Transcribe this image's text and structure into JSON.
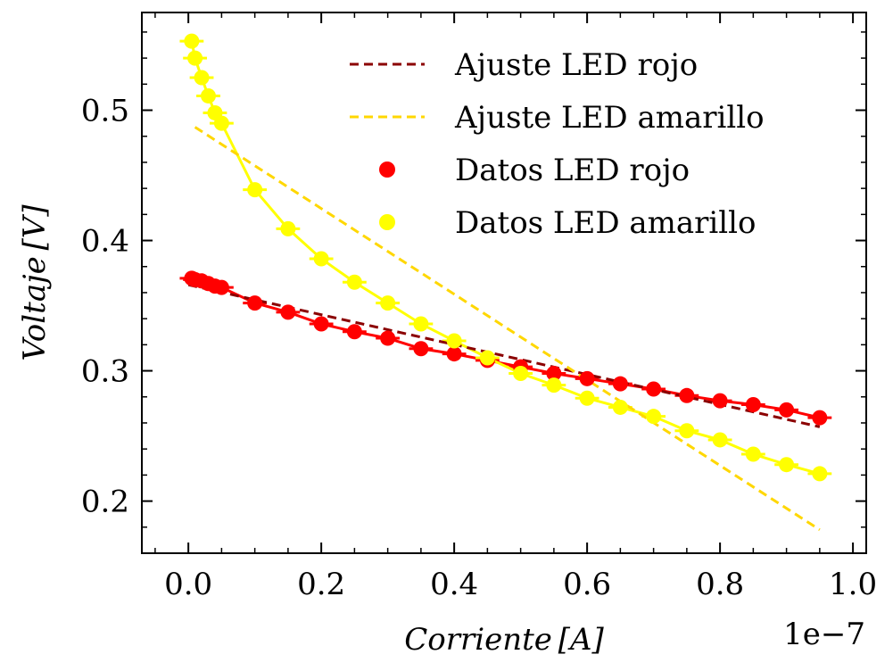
{
  "chart_data": {
    "type": "scatter",
    "xlabel": "Corriente [A]",
    "ylabel": "Voltaje [V]",
    "x_offset_label": "1e−7",
    "xlim": [
      -0.07,
      1.02
    ],
    "ylim": [
      0.16,
      0.575
    ],
    "x_ticks": [
      0.0,
      0.2,
      0.4,
      0.6,
      0.8,
      1.0
    ],
    "x_tick_labels": [
      "0.0",
      "0.2",
      "0.4",
      "0.6",
      "0.8",
      "1.0"
    ],
    "y_ticks": [
      0.2,
      0.3,
      0.4,
      0.5
    ],
    "y_tick_labels": [
      "0.2",
      "0.3",
      "0.4",
      "0.5"
    ],
    "x_scale_factor": "1e-7",
    "x_error": 0.018,
    "legend_position": "top-right",
    "legend": [
      {
        "label": "Ajuste LED rojo",
        "kind": "dashed-line",
        "color": "#8b0000"
      },
      {
        "label": "Ajuste LED amarillo",
        "kind": "dashed-line",
        "color": "#ffd700"
      },
      {
        "label": "Datos LED rojo",
        "kind": "marker",
        "color": "#ff0000"
      },
      {
        "label": "Datos LED amarillo",
        "kind": "marker",
        "color": "#ffff00"
      }
    ],
    "series": [
      {
        "name": "Datos LED rojo",
        "kind": "scatter",
        "color": "#ff0000",
        "x": [
          0.005,
          0.01,
          0.02,
          0.03,
          0.04,
          0.05,
          0.1,
          0.15,
          0.2,
          0.25,
          0.3,
          0.35,
          0.4,
          0.45,
          0.5,
          0.55,
          0.6,
          0.65,
          0.7,
          0.75,
          0.8,
          0.85,
          0.9,
          0.95
        ],
        "y": [
          0.371,
          0.37,
          0.369,
          0.367,
          0.365,
          0.364,
          0.352,
          0.345,
          0.336,
          0.33,
          0.325,
          0.317,
          0.313,
          0.308,
          0.303,
          0.298,
          0.294,
          0.29,
          0.286,
          0.281,
          0.277,
          0.274,
          0.27,
          0.264
        ]
      },
      {
        "name": "Datos LED amarillo",
        "kind": "scatter",
        "color": "#ffff00",
        "x": [
          0.005,
          0.01,
          0.02,
          0.03,
          0.04,
          0.05,
          0.1,
          0.15,
          0.2,
          0.25,
          0.3,
          0.35,
          0.4,
          0.45,
          0.5,
          0.55,
          0.6,
          0.65,
          0.7,
          0.75,
          0.8,
          0.85,
          0.9,
          0.95
        ],
        "y": [
          0.553,
          0.54,
          0.525,
          0.511,
          0.498,
          0.49,
          0.439,
          0.409,
          0.386,
          0.368,
          0.352,
          0.336,
          0.323,
          0.31,
          0.298,
          0.289,
          0.279,
          0.272,
          0.265,
          0.254,
          0.247,
          0.236,
          0.228,
          0.221
        ]
      },
      {
        "name": "Ajuste LED rojo",
        "kind": "fit-line",
        "color": "#8b0000",
        "x": [
          0.0,
          0.95
        ],
        "y": [
          0.366,
          0.257
        ]
      },
      {
        "name": "Ajuste LED amarillo",
        "kind": "fit-line",
        "color": "#ffd700",
        "x": [
          0.01,
          0.95
        ],
        "y": [
          0.487,
          0.178
        ]
      }
    ]
  }
}
